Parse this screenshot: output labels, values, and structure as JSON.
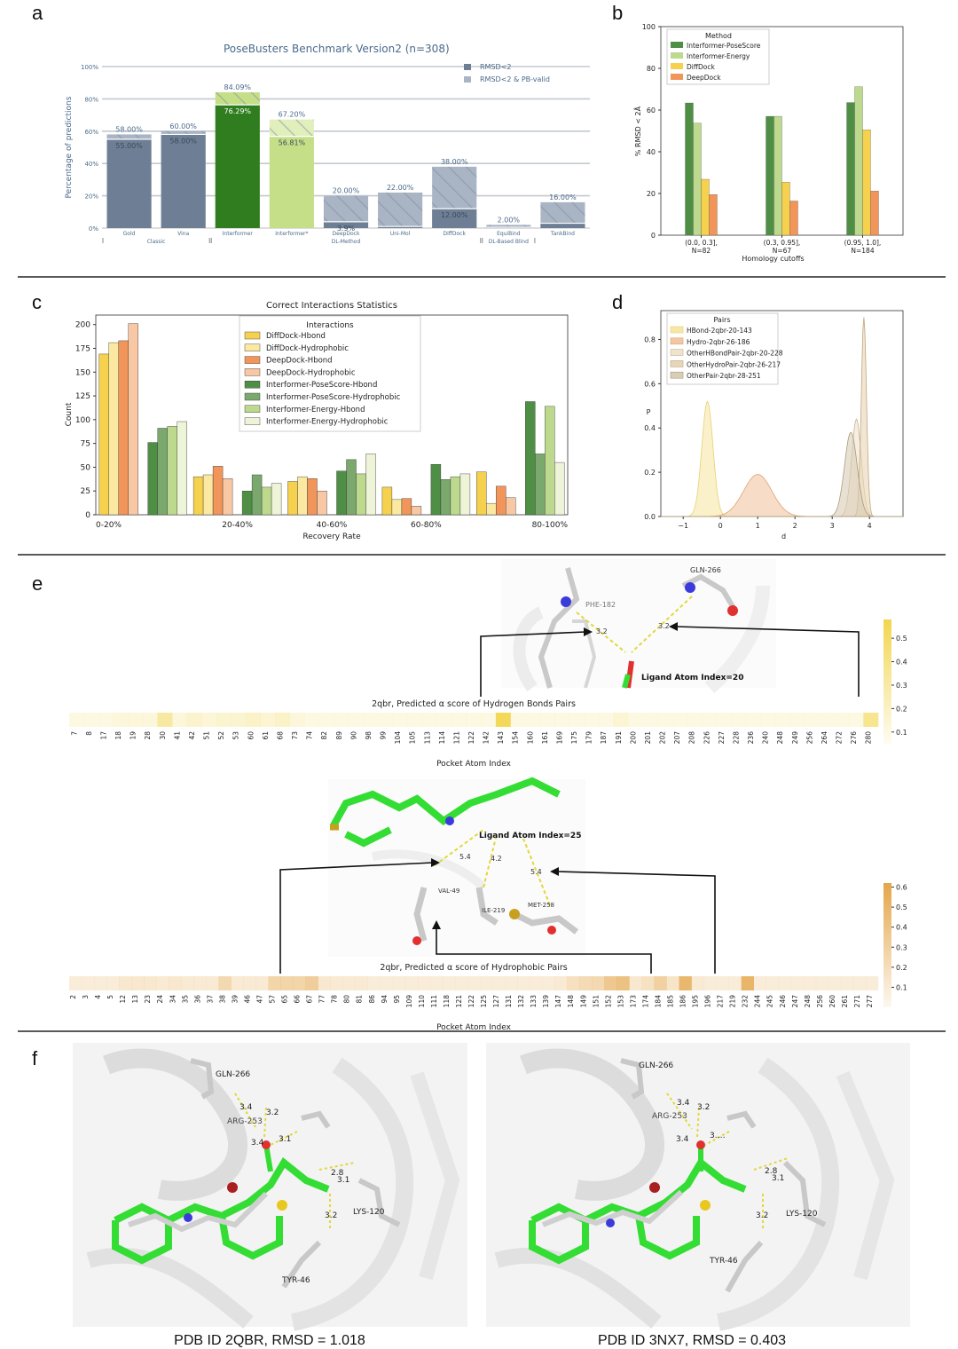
{
  "panels": {
    "a": "a",
    "b": "b",
    "c": "c",
    "d": "d",
    "e": "e",
    "f": "f"
  },
  "colors": {
    "rmsd2": "#6e7f95",
    "pbvalid": "#a9b5c4",
    "interformer_dark": "#2f7d1f",
    "interformer_light": "#c5df88",
    "pose": "#4f8f45",
    "energy": "#bcd98e",
    "diffdock": "#f6d14e",
    "deepdock": "#f2955a",
    "interformer_energy_hydro": "#eef4d8",
    "deepdock_hydro": "#f8c7a3",
    "diffdock_hydro": "#fbe9a2",
    "heat_hbond": "#f2d650",
    "heat_hydro": "#e4a64a",
    "ligand": "#33dd33",
    "protein": "#bdbdbd"
  },
  "chart_data": [
    {
      "id": "a",
      "type": "bar",
      "title": "PoseBusters Benchmark Version2 (n=308)",
      "ylabel": "Percentage of predictions",
      "ylim": [
        0,
        100
      ],
      "yticks": [
        "0%",
        "20%",
        "40%",
        "60%",
        "80%",
        "100%"
      ],
      "categories": [
        "Gold",
        "Vina",
        "Interformer",
        "Interformer*",
        "DeepDock",
        "Uni-Mol",
        "DiffDock",
        "EquiBind",
        "TankBind"
      ],
      "groups": [
        {
          "label": "Classic",
          "from": 0,
          "to": 1
        },
        {
          "label": "DL-Method",
          "from": 2,
          "to": 6
        },
        {
          "label": "DL-Based Blind",
          "from": 7,
          "to": 7
        }
      ],
      "series": [
        {
          "name": "RMSD<2",
          "values": [
            58.0,
            60.0,
            84.09,
            67.2,
            20.0,
            22.0,
            38.0,
            2.0,
            16.0
          ]
        },
        {
          "name": "RMSD<2 & PB-valid",
          "values": [
            55.0,
            58.0,
            76.29,
            56.81,
            3.9,
            1.0,
            12.0,
            0.5,
            3.0
          ]
        }
      ],
      "top_labels": [
        "58.00%",
        "60.00%",
        "84.09%",
        "67.20%",
        "20.00%",
        "22.00%",
        "38.00%",
        "2.00%",
        "16.00%"
      ],
      "inner_labels": [
        "55.00%",
        "58.00%",
        "76.29%",
        "56.81%",
        "3.9%",
        "",
        "12.00%",
        "",
        ""
      ],
      "legend": [
        "RMSD<2",
        "RMSD<2 & PB-valid"
      ],
      "legend_position": "top-right",
      "grid": true
    },
    {
      "id": "b",
      "type": "bar",
      "ylabel": "% RMSD < 2Å",
      "xlabel": "Homology cutoffs",
      "ylim": [
        0,
        100
      ],
      "yticks": [
        "0",
        "20",
        "40",
        "60",
        "80",
        "100"
      ],
      "categories": [
        "(0.0, 0.3],\nN=82",
        "(0.3, 0.95],\nN=67",
        "(0.95, 1.0],\nN=184"
      ],
      "legend_title": "Method",
      "legend_position": "top-left",
      "series": [
        {
          "name": "Interformer-PoseScore",
          "values": [
            63.4,
            57.0,
            63.6
          ]
        },
        {
          "name": "Interformer-Energy",
          "values": [
            53.7,
            57.0,
            71.2
          ]
        },
        {
          "name": "DiffDock",
          "values": [
            26.8,
            25.4,
            50.5
          ]
        },
        {
          "name": "DeepDock",
          "values": [
            19.5,
            16.4,
            21.2
          ]
        }
      ]
    },
    {
      "id": "c",
      "type": "bar",
      "title": "Correct Interactions Statistics",
      "xlabel": "Recovery Rate",
      "ylabel": "Count",
      "ylim": [
        0,
        210
      ],
      "yticks": [
        "0",
        "25",
        "50",
        "75",
        "100",
        "125",
        "150",
        "175",
        "200"
      ],
      "categories": [
        "0-20%",
        "20-40%",
        "40-60%",
        "60-80%",
        "80-100%"
      ],
      "legend_title": "Interactions",
      "legend_position": "top-center",
      "series": [
        {
          "name": "DiffDock-Hbond",
          "values": [
            169,
            40,
            35,
            29,
            45
          ]
        },
        {
          "name": "DiffDock-Hydrophobic",
          "values": [
            181,
            42,
            40,
            16,
            12
          ]
        },
        {
          "name": "DeepDock-Hbond",
          "values": [
            183,
            51,
            38,
            17,
            30
          ]
        },
        {
          "name": "DeepDock-Hydrophobic",
          "values": [
            201,
            38,
            25,
            9,
            18
          ]
        },
        {
          "name": "Interformer-PoseScore-Hbond",
          "values": [
            76,
            25,
            46,
            53,
            119
          ]
        },
        {
          "name": "Interformer-PoseScore-Hydrophobic",
          "values": [
            91,
            42,
            58,
            37,
            64
          ]
        },
        {
          "name": "Interformer-Energy-Hbond",
          "values": [
            93,
            29,
            43,
            40,
            114
          ]
        },
        {
          "name": "Interformer-Energy-Hydrophobic",
          "values": [
            98,
            33,
            64,
            43,
            55
          ]
        }
      ]
    },
    {
      "id": "d",
      "type": "area",
      "xlabel": "d",
      "ylabel": "P",
      "xlim": [
        -1.6,
        4.9
      ],
      "ylim": [
        0,
        0.93
      ],
      "xticks": [
        "−1",
        "0",
        "1",
        "2",
        "3",
        "4"
      ],
      "yticks": [
        "0.0",
        "0.2",
        "0.4",
        "0.6",
        "0.8"
      ],
      "legend_title": "Pairs",
      "legend_position": "top-left",
      "series": [
        {
          "name": "HBond-2qbr-20-143",
          "peak_x": -0.35,
          "peak_y": 0.52,
          "sd": 0.15
        },
        {
          "name": "Hydro-2qbr-26-186",
          "peak_x": 1.0,
          "peak_y": 0.19,
          "sd": 0.38
        },
        {
          "name": "OtherHBondPair-2qbr-20-228",
          "peak_x": 3.65,
          "peak_y": 0.44,
          "sd": 0.13
        },
        {
          "name": "OtherHydroPair-2qbr-26-217",
          "peak_x": 3.85,
          "peak_y": 0.9,
          "sd": 0.07
        },
        {
          "name": "OtherPair-2qbr-28-251",
          "peak_x": 3.5,
          "peak_y": 0.38,
          "sd": 0.17
        }
      ]
    },
    {
      "id": "e1",
      "type": "heatmap",
      "title": "2qbr, Predicted α score of Hydrogen Bonds Pairs",
      "xlabel": "Pocket Atom Index",
      "colorbar_ticks": [
        "0.1",
        "0.2",
        "0.3",
        "0.4",
        "0.5"
      ],
      "colorbar_range": [
        0.05,
        0.58
      ],
      "x": [
        "7",
        "8",
        "17",
        "18",
        "19",
        "28",
        "30",
        "41",
        "42",
        "51",
        "52",
        "53",
        "60",
        "61",
        "68",
        "73",
        "74",
        "82",
        "89",
        "90",
        "98",
        "99",
        "104",
        "105",
        "113",
        "114",
        "121",
        "122",
        "142",
        "143",
        "154",
        "160",
        "161",
        "169",
        "175",
        "179",
        "187",
        "191",
        "200",
        "201",
        "202",
        "207",
        "208",
        "226",
        "227",
        "228",
        "236",
        "240",
        "248",
        "249",
        "256",
        "264",
        "272",
        "276",
        "280"
      ],
      "values": [
        0.08,
        0.08,
        0.08,
        0.1,
        0.1,
        0.1,
        0.3,
        0.1,
        0.15,
        0.12,
        0.14,
        0.14,
        0.17,
        0.13,
        0.17,
        0.1,
        0.08,
        0.08,
        0.08,
        0.08,
        0.08,
        0.08,
        0.08,
        0.08,
        0.08,
        0.08,
        0.08,
        0.08,
        0.08,
        0.55,
        0.08,
        0.08,
        0.08,
        0.08,
        0.08,
        0.08,
        0.08,
        0.13,
        0.08,
        0.08,
        0.08,
        0.08,
        0.08,
        0.08,
        0.08,
        0.08,
        0.08,
        0.08,
        0.08,
        0.08,
        0.08,
        0.08,
        0.08,
        0.08,
        0.36
      ]
    },
    {
      "id": "e2",
      "type": "heatmap",
      "title": "2qbr, Predicted α score of Hydrophobic Pairs",
      "xlabel": "Pocket Atom Index",
      "colorbar_ticks": [
        "0.1",
        "0.2",
        "0.3",
        "0.4",
        "0.5",
        "0.6"
      ],
      "colorbar_range": [
        0.0,
        0.62
      ],
      "x": [
        "2",
        "3",
        "4",
        "5",
        "12",
        "13",
        "23",
        "24",
        "34",
        "35",
        "36",
        "37",
        "38",
        "39",
        "46",
        "47",
        "57",
        "65",
        "66",
        "67",
        "77",
        "78",
        "80",
        "81",
        "86",
        "94",
        "95",
        "109",
        "110",
        "111",
        "118",
        "121",
        "122",
        "125",
        "127",
        "131",
        "132",
        "133",
        "139",
        "147",
        "148",
        "149",
        "151",
        "152",
        "153",
        "173",
        "174",
        "184",
        "185",
        "186",
        "195",
        "196",
        "217",
        "219",
        "232",
        "244",
        "245",
        "246",
        "247",
        "248",
        "256",
        "260",
        "261",
        "271",
        "277"
      ],
      "values": [
        0.06,
        0.06,
        0.06,
        0.06,
        0.1,
        0.1,
        0.1,
        0.08,
        0.1,
        0.08,
        0.08,
        0.08,
        0.22,
        0.08,
        0.08,
        0.08,
        0.25,
        0.25,
        0.25,
        0.3,
        0.1,
        0.08,
        0.08,
        0.08,
        0.06,
        0.06,
        0.06,
        0.06,
        0.06,
        0.06,
        0.06,
        0.06,
        0.06,
        0.06,
        0.06,
        0.06,
        0.06,
        0.06,
        0.06,
        0.08,
        0.16,
        0.2,
        0.22,
        0.35,
        0.4,
        0.1,
        0.15,
        0.28,
        0.12,
        0.48,
        0.08,
        0.06,
        0.06,
        0.06,
        0.5,
        0.06,
        0.06,
        0.06,
        0.06,
        0.06,
        0.06,
        0.06,
        0.06,
        0.06,
        0.06
      ]
    }
  ],
  "panel_e": {
    "hbond_labels": {
      "phe": "PHE-182",
      "gln": "GLN-266",
      "d1": "3.2",
      "d2": "3.2",
      "ligand": "Ligand Atom Index=20"
    },
    "hydro_labels": {
      "ligand": "Ligand Atom Index=25",
      "val": "VAL-49",
      "ile": "ILE-219",
      "met": "MET-258",
      "d1": "5.4",
      "d2": "4.2",
      "d3": "5.4"
    }
  },
  "panel_f": {
    "left": {
      "caption": "PDB ID 2QBR, RMSD = 1.018",
      "residues": {
        "gln": "GLN-266",
        "arg": "ARG-253",
        "lys": "LYS-120",
        "tyr": "TYR-46"
      },
      "distances": [
        "3.4",
        "3.2",
        "3.1",
        "3.4",
        "2.8",
        "3.1",
        "3.2"
      ]
    },
    "right": {
      "caption": "PDB ID 3NX7, RMSD = 0.403",
      "residues": {
        "gln": "GLN-266",
        "arg": "ARG-253",
        "lys": "LYS-120",
        "tyr": "TYR-46"
      },
      "distances": [
        "3.4",
        "3.2",
        "3.4",
        "3.…",
        "2.8",
        "3.1",
        "3.2"
      ]
    }
  }
}
